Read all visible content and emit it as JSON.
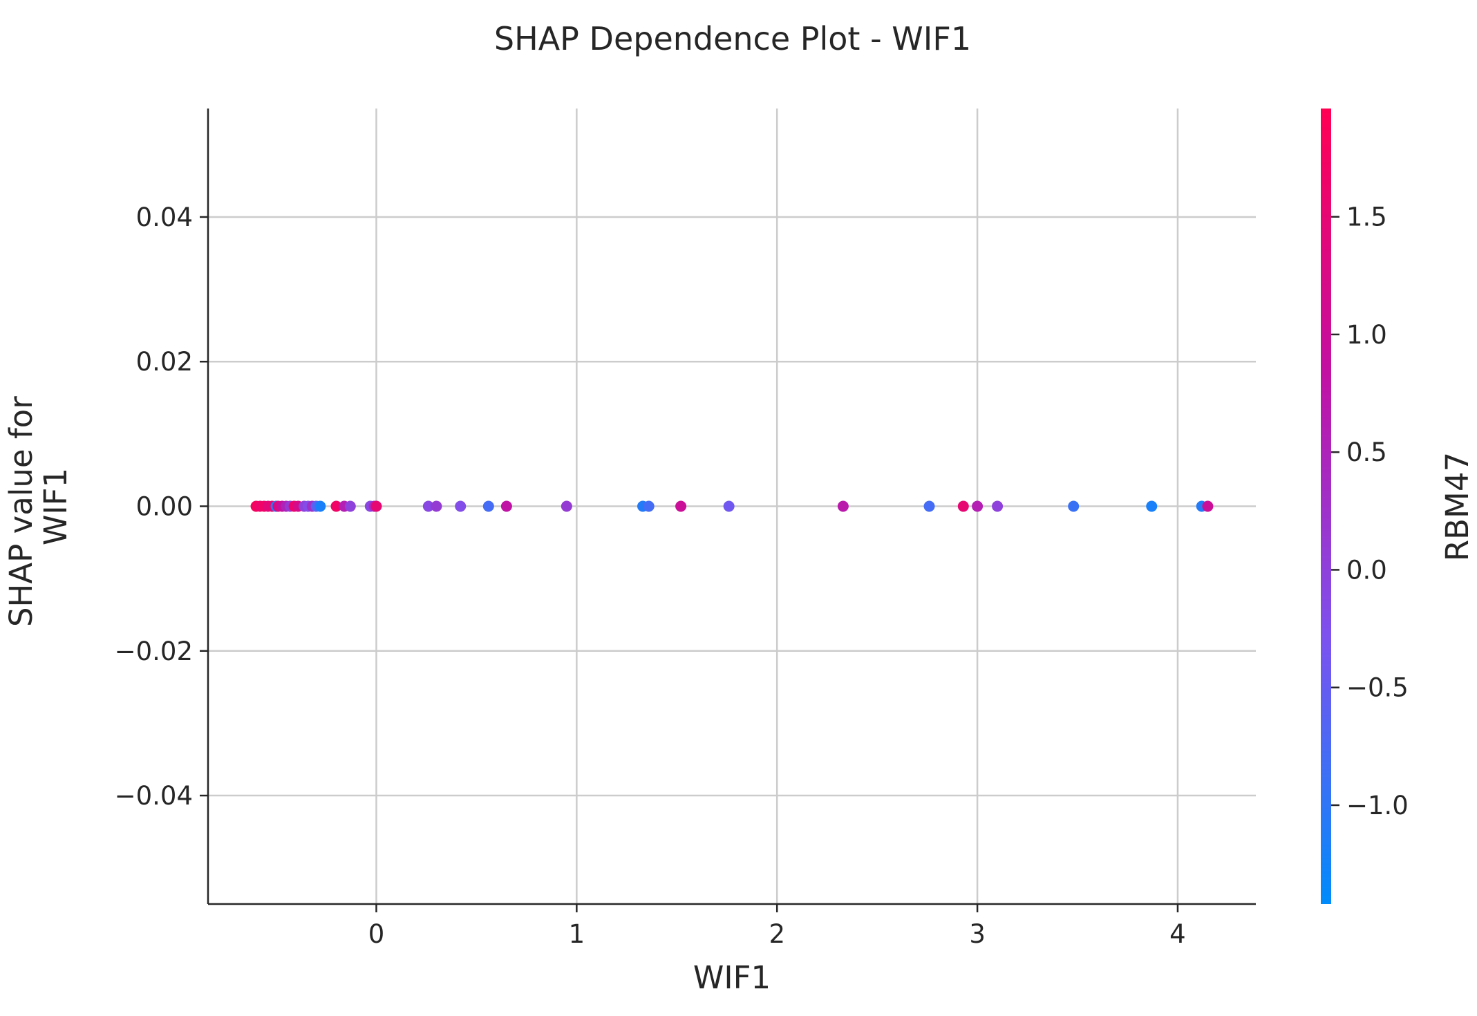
{
  "chart_data": {
    "type": "scatter",
    "title": "SHAP Dependence Plot - WIF1",
    "xlabel": "WIF1",
    "ylabel": [
      "SHAP value for",
      "WIF1"
    ],
    "xlim": [
      -0.84,
      4.39
    ],
    "ylim": [
      -0.055,
      0.055
    ],
    "xticks": [
      0,
      1,
      2,
      3,
      4
    ],
    "yticks": [
      -0.04,
      -0.02,
      0.0,
      0.02,
      0.04
    ],
    "xtick_labels": [
      "0",
      "1",
      "2",
      "3",
      "4"
    ],
    "ytick_labels": [
      "−0.04",
      "−0.02",
      "0.00",
      "0.02",
      "0.04"
    ],
    "grid": true,
    "colorbar": {
      "label": "RBM47",
      "range": [
        -1.42,
        1.96
      ],
      "ticks": [
        -1.0,
        -0.5,
        0.0,
        0.5,
        1.0,
        1.5
      ],
      "tick_labels": [
        "−1.0",
        "−0.5",
        "0.0",
        "0.5",
        "1.0",
        "1.5"
      ],
      "colors": [
        "#008bfb",
        "#7c52ef",
        "#c210a3",
        "#ff0052"
      ]
    },
    "points": [
      {
        "x": -0.6,
        "y": 0.0,
        "c": 1.8
      },
      {
        "x": -0.58,
        "y": 0.0,
        "c": 1.6
      },
      {
        "x": -0.56,
        "y": 0.0,
        "c": 1.7
      },
      {
        "x": -0.54,
        "y": 0.0,
        "c": 1.4
      },
      {
        "x": -0.52,
        "y": 0.0,
        "c": 1.5
      },
      {
        "x": -0.5,
        "y": 0.0,
        "c": -1.1
      },
      {
        "x": -0.49,
        "y": 0.0,
        "c": 1.3
      },
      {
        "x": -0.47,
        "y": 0.0,
        "c": 0.9
      },
      {
        "x": -0.45,
        "y": 0.0,
        "c": 0.5
      },
      {
        "x": -0.43,
        "y": 0.0,
        "c": 0.1
      },
      {
        "x": -0.41,
        "y": 0.0,
        "c": 1.6
      },
      {
        "x": -0.39,
        "y": 0.0,
        "c": 1.2
      },
      {
        "x": -0.36,
        "y": 0.0,
        "c": 0.0
      },
      {
        "x": -0.34,
        "y": 0.0,
        "c": -0.2
      },
      {
        "x": -0.32,
        "y": 0.0,
        "c": 0.3
      },
      {
        "x": -0.3,
        "y": 0.0,
        "c": -0.6
      },
      {
        "x": -0.28,
        "y": 0.0,
        "c": -1.2
      },
      {
        "x": -0.2,
        "y": 0.0,
        "c": 1.7
      },
      {
        "x": -0.16,
        "y": 0.0,
        "c": 0.6
      },
      {
        "x": -0.13,
        "y": 0.0,
        "c": 0.0
      },
      {
        "x": -0.03,
        "y": 0.0,
        "c": -0.1
      },
      {
        "x": -0.01,
        "y": 0.0,
        "c": 0.4
      },
      {
        "x": 0.0,
        "y": 0.0,
        "c": 1.5
      },
      {
        "x": 0.26,
        "y": 0.0,
        "c": -0.1
      },
      {
        "x": 0.3,
        "y": 0.0,
        "c": 0.1
      },
      {
        "x": 0.42,
        "y": 0.0,
        "c": -0.2
      },
      {
        "x": 0.56,
        "y": 0.0,
        "c": -0.8
      },
      {
        "x": 0.65,
        "y": 0.0,
        "c": 0.8
      },
      {
        "x": 0.95,
        "y": 0.0,
        "c": 0.1
      },
      {
        "x": 1.33,
        "y": 0.0,
        "c": -1.1
      },
      {
        "x": 1.36,
        "y": 0.0,
        "c": -0.8
      },
      {
        "x": 1.52,
        "y": 0.0,
        "c": 1.0
      },
      {
        "x": 1.76,
        "y": 0.0,
        "c": -0.4
      },
      {
        "x": 2.33,
        "y": 0.0,
        "c": 0.7
      },
      {
        "x": 2.76,
        "y": 0.0,
        "c": -0.8
      },
      {
        "x": 2.93,
        "y": 0.0,
        "c": 1.5
      },
      {
        "x": 3.0,
        "y": 0.0,
        "c": 0.6
      },
      {
        "x": 3.1,
        "y": 0.0,
        "c": 0.0
      },
      {
        "x": 3.48,
        "y": 0.0,
        "c": -0.9
      },
      {
        "x": 3.87,
        "y": 0.0,
        "c": -1.2
      },
      {
        "x": 4.12,
        "y": 0.0,
        "c": -1.1
      },
      {
        "x": 4.15,
        "y": 0.0,
        "c": 1.0
      }
    ]
  }
}
